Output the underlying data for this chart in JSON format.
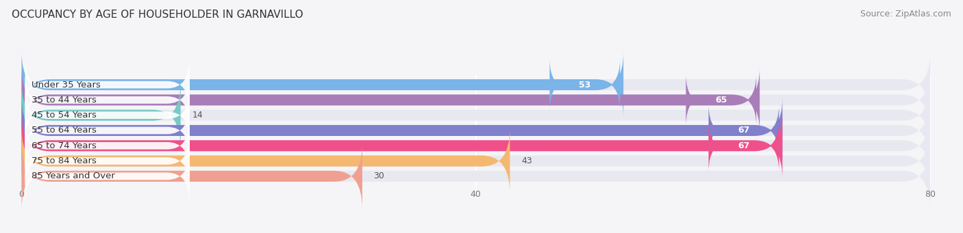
{
  "title": "OCCUPANCY BY AGE OF HOUSEHOLDER IN GARNAVILLO",
  "source": "Source: ZipAtlas.com",
  "categories": [
    "Under 35 Years",
    "35 to 44 Years",
    "45 to 54 Years",
    "55 to 64 Years",
    "65 to 74 Years",
    "75 to 84 Years",
    "85 Years and Over"
  ],
  "values": [
    53,
    65,
    14,
    67,
    67,
    43,
    30
  ],
  "bar_colors": [
    "#7ab4e8",
    "#a87db8",
    "#76cac5",
    "#8080cc",
    "#f0508a",
    "#f5b870",
    "#f0a090"
  ],
  "bar_bg_color": "#e8e8f0",
  "bar_separator_color": "#f5f5f8",
  "xlim": [
    0,
    80
  ],
  "xticks": [
    0,
    40,
    80
  ],
  "title_fontsize": 11,
  "source_fontsize": 9,
  "label_fontsize": 9.5,
  "value_fontsize": 9,
  "bar_height": 0.72,
  "bar_gap": 0.28,
  "background_color": "#f5f5f8"
}
